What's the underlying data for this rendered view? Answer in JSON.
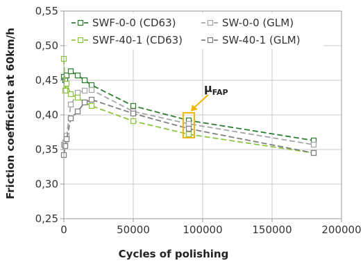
{
  "chart_data": {
    "type": "line",
    "xlabel": "Cycles of polishing",
    "ylabel": "Friction coefficient at 60km/h",
    "xlim": [
      0,
      200000
    ],
    "ylim": [
      0.25,
      0.55
    ],
    "xticks": [
      0,
      50000,
      100000,
      150000,
      200000
    ],
    "xtick_labels": [
      "0",
      "50000",
      "100000",
      "150000",
      "200000"
    ],
    "yticks": [
      0.25,
      0.3,
      0.35,
      0.4,
      0.45,
      0.5,
      0.55
    ],
    "ytick_labels": [
      "0,25",
      "0,30",
      "0,35",
      "0,40",
      "0,45",
      "0,50",
      "0,55"
    ],
    "grid": true,
    "legend_position": "top",
    "series": [
      {
        "name": "SWF-0-0 (CD63)",
        "color": "#2e7d32",
        "dash": "dashed",
        "marker": "square",
        "x": [
          0,
          1000,
          2000,
          5000,
          10000,
          15000,
          20000,
          50000,
          90000,
          180000
        ],
        "y": [
          0.455,
          0.45,
          0.457,
          0.463,
          0.457,
          0.45,
          0.443,
          0.413,
          0.392,
          0.363
        ]
      },
      {
        "name": "SW-0-0 (GLM)",
        "color": "#a6a6a6",
        "dash": "dashed",
        "marker": "square",
        "x": [
          0,
          1000,
          2000,
          5000,
          10000,
          15000,
          20000,
          50000,
          90000,
          180000
        ],
        "y": [
          0.357,
          0.36,
          0.37,
          0.415,
          0.432,
          0.435,
          0.436,
          0.405,
          0.387,
          0.357
        ]
      },
      {
        "name": "SWF-40-1 (CD63)",
        "color": "#8cc63f",
        "dash": "dashed",
        "marker": "square",
        "x": [
          0,
          1000,
          2000,
          5000,
          10000,
          15000,
          20000,
          50000,
          90000,
          180000
        ],
        "y": [
          0.481,
          0.435,
          0.445,
          0.43,
          0.425,
          0.418,
          0.413,
          0.391,
          0.372,
          0.345
        ]
      },
      {
        "name": "SW-40-1 (GLM)",
        "color": "#7f7f7f",
        "dash": "dashed",
        "marker": "square",
        "x": [
          0,
          1000,
          2000,
          5000,
          10000,
          15000,
          20000,
          50000,
          90000,
          180000
        ],
        "y": [
          0.342,
          0.355,
          0.365,
          0.395,
          0.405,
          0.418,
          0.422,
          0.402,
          0.38,
          0.345
        ]
      }
    ],
    "annotation": {
      "label": "μ",
      "subscript": "FAP",
      "x": 90000,
      "y_range": [
        0.367,
        0.403
      ],
      "color": "#f2b600"
    }
  }
}
